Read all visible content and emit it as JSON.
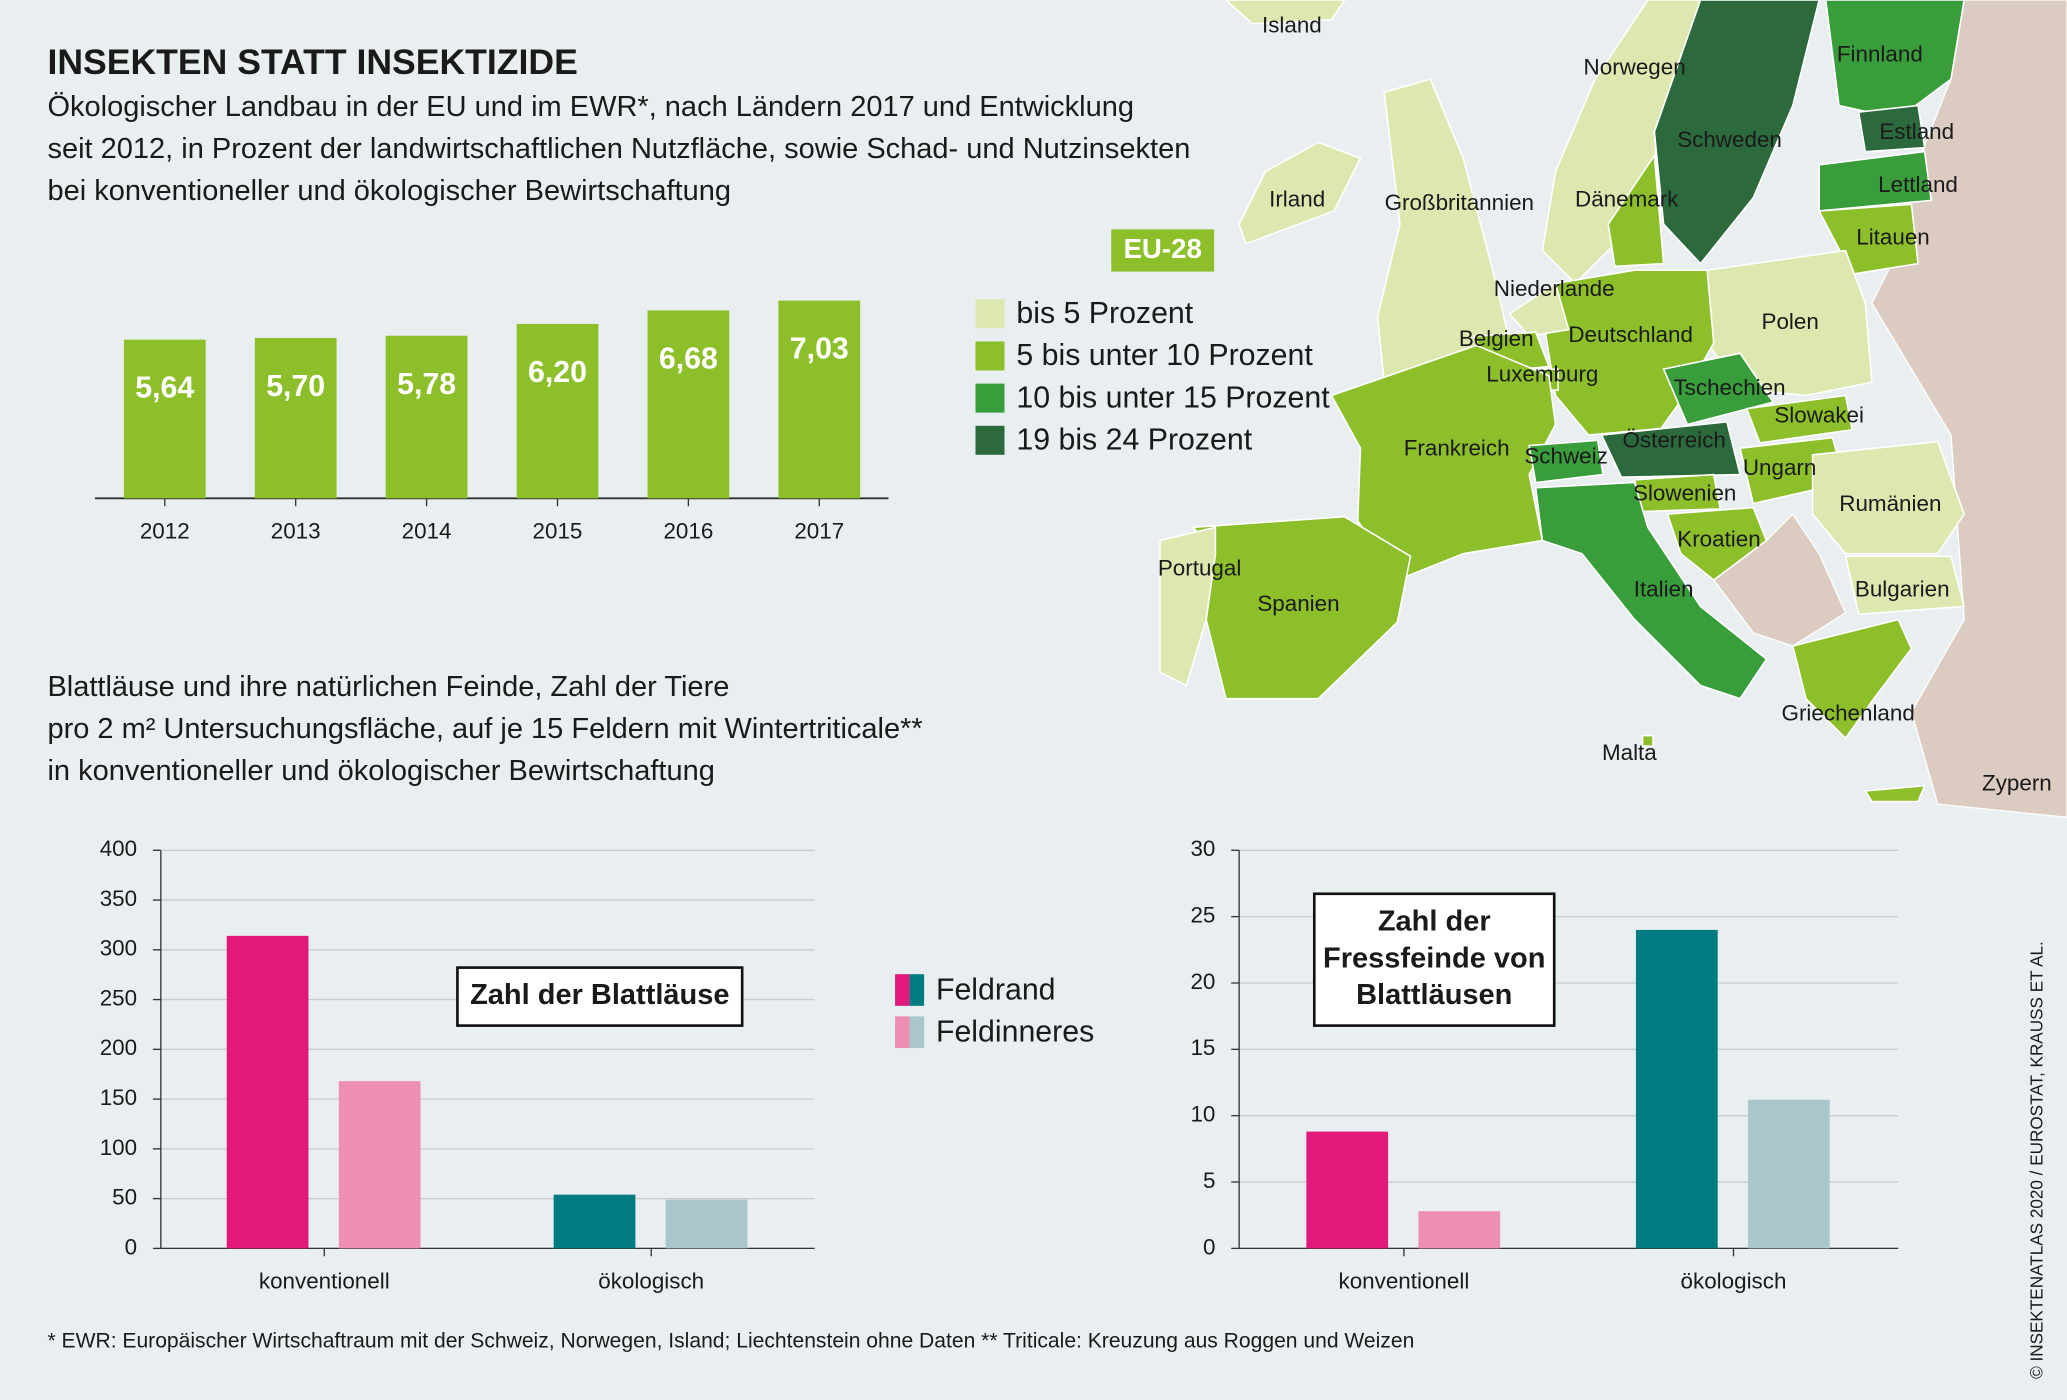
{
  "title": "INSEKTEN STATT INSEKTIZIDE",
  "subtitle": [
    "Ökologischer Landbau in der EU und im EWR*, nach Ländern 2017 und Entwicklung",
    "seit 2012, in Prozent der landwirtschaftlichen Nutzfläche, sowie Schad- und Nutzinsekten",
    "bei konventioneller und ökologischer Bewirtschaftung"
  ],
  "section_title": [
    "Blattläuse und ihre natürlichen Feinde, Zahl der Tiere",
    "pro 2 m² Untersuchungsfläche, auf je 15 Feldern mit Wintertriticale**",
    "in konventioneller und ökologischer Bewirtschaftung"
  ],
  "footnote": "* EWR: Europäischer Wirtschaftraum mit der Schweiz, Norwegen, Island; Liechtenstein ohne Daten  ** Triticale: Kreuzung aus Roggen und Weizen",
  "source": "© INSEKTENATLAS 2020 / EUROSTAT, KRAUSS ET AL.",
  "chart_data": [
    {
      "type": "bar",
      "categories": [
        "2012",
        "2013",
        "2014",
        "2015",
        "2016",
        "2017"
      ],
      "values": [
        5.64,
        5.7,
        5.78,
        6.2,
        6.68,
        7.03
      ],
      "value_labels": [
        "5,64",
        "5,70",
        "5,78",
        "6,20",
        "6,68",
        "7,03"
      ],
      "color": "#8dbf2a"
    },
    {
      "type": "map",
      "title": "EU-28",
      "legend": [
        {
          "label": "bis 5 Prozent",
          "color": "#dde8b0"
        },
        {
          "label": "5 bis unter 10 Prozent",
          "color": "#8dbf2a"
        },
        {
          "label": "10 bis unter 15 Prozent",
          "color": "#3a9d3c"
        },
        {
          "label": "19 bis 24 Prozent",
          "color": "#2c6a3d"
        }
      ],
      "regions": [
        {
          "name": "Island",
          "class": 0
        },
        {
          "name": "Norwegen",
          "class": 0
        },
        {
          "name": "Schweden",
          "class": 3
        },
        {
          "name": "Finnland",
          "class": 2
        },
        {
          "name": "Estland",
          "class": 3
        },
        {
          "name": "Lettland",
          "class": 2
        },
        {
          "name": "Litauen",
          "class": 1
        },
        {
          "name": "Polen",
          "class": 0
        },
        {
          "name": "Deutschland",
          "class": 1
        },
        {
          "name": "Dänemark",
          "class": 1
        },
        {
          "name": "Großbritannien",
          "class": 0
        },
        {
          "name": "Irland",
          "class": 0
        },
        {
          "name": "Niederlande",
          "class": 0
        },
        {
          "name": "Belgien",
          "class": 1
        },
        {
          "name": "Luxemburg",
          "class": 1
        },
        {
          "name": "Frankreich",
          "class": 1
        },
        {
          "name": "Schweiz",
          "class": 2
        },
        {
          "name": "Österreich",
          "class": 3
        },
        {
          "name": "Tschechien",
          "class": 2
        },
        {
          "name": "Slowakei",
          "class": 1
        },
        {
          "name": "Ungarn",
          "class": 1
        },
        {
          "name": "Slowenien",
          "class": 1
        },
        {
          "name": "Kroatien",
          "class": 1
        },
        {
          "name": "Italien",
          "class": 2
        },
        {
          "name": "Rumänien",
          "class": 0
        },
        {
          "name": "Bulgarien",
          "class": 0
        },
        {
          "name": "Griechenland",
          "class": 1
        },
        {
          "name": "Spanien",
          "class": 1
        },
        {
          "name": "Portugal",
          "class": 0
        },
        {
          "name": "Malta",
          "class": 1
        },
        {
          "name": "Zypern",
          "class": 1
        }
      ]
    },
    {
      "type": "grouped_bar",
      "annotation": [
        "Zahl der Blattläuse"
      ],
      "categories": [
        "konventionell",
        "ökologisch"
      ],
      "series": [
        {
          "name": "Feldrand",
          "color": [
            "#e0197a",
            "#007b80"
          ],
          "values": [
            314,
            54
          ]
        },
        {
          "name": "Feldinneres",
          "color": [
            "#ec8fb3",
            "#a9c7cb"
          ],
          "values": [
            168,
            49
          ]
        }
      ],
      "ylim": [
        0,
        400
      ],
      "yticks": [
        0,
        50,
        100,
        150,
        200,
        250,
        300,
        350,
        400
      ],
      "grid": true
    },
    {
      "type": "grouped_bar",
      "annotation": [
        "Zahl der",
        "Fressfeinde von",
        "Blattläusen"
      ],
      "categories": [
        "konventionell",
        "ökologisch"
      ],
      "series": [
        {
          "color": [
            "#e0197a",
            "#007b80"
          ],
          "values": [
            8.8,
            24
          ]
        },
        {
          "color": [
            "#ec8fb3",
            "#a9c7cb"
          ],
          "values": [
            2.8,
            11.2
          ]
        }
      ],
      "ylim": [
        0,
        30
      ],
      "yticks": [
        0,
        5,
        10,
        15,
        20,
        25,
        30
      ],
      "grid": true
    }
  ]
}
